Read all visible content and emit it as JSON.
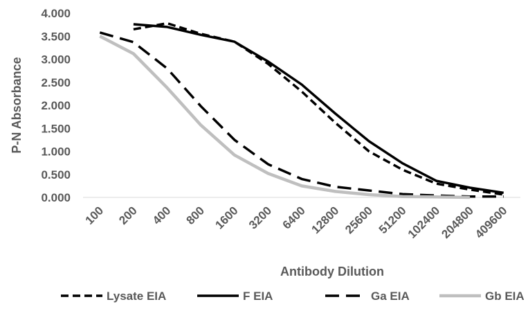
{
  "chart_data": {
    "type": "line",
    "title": "",
    "xlabel": "Antibody Dilution",
    "ylabel": "P-N Absorbance",
    "x": [
      "100",
      "200",
      "400",
      "800",
      "1600",
      "3200",
      "6400",
      "12800",
      "25600",
      "51200",
      "102400",
      "204800",
      "409600"
    ],
    "yticks": [
      "0.000",
      "0.500",
      "1.000",
      "1.500",
      "2.000",
      "2.500",
      "3.000",
      "3.500",
      "4.000"
    ],
    "ylim": [
      0,
      4
    ],
    "grid": false,
    "legend_position": "bottom",
    "series": [
      {
        "name": "Lysate EIA",
        "color": "#000000",
        "dash": "short",
        "values": [
          null,
          3.65,
          3.78,
          3.55,
          3.38,
          2.9,
          2.3,
          1.62,
          1.0,
          0.6,
          0.3,
          0.17,
          0.06
        ]
      },
      {
        "name": "F EIA",
        "color": "#000000",
        "dash": "solid",
        "values": [
          null,
          3.76,
          3.7,
          3.53,
          3.38,
          2.95,
          2.45,
          1.82,
          1.22,
          0.74,
          0.36,
          0.21,
          0.1
        ]
      },
      {
        "name": "Ga EIA",
        "color": "#000000",
        "dash": "long",
        "values": [
          3.58,
          3.37,
          2.8,
          1.98,
          1.25,
          0.72,
          0.4,
          0.23,
          0.15,
          0.07,
          0.04,
          0.02,
          0.02
        ]
      },
      {
        "name": "Gb EIA",
        "color": "#bfbfbf",
        "dash": "solid",
        "values": [
          3.5,
          3.12,
          2.38,
          1.57,
          0.92,
          0.52,
          0.25,
          0.13,
          0.06,
          0.02,
          0.01,
          0.0,
          null
        ]
      }
    ]
  }
}
